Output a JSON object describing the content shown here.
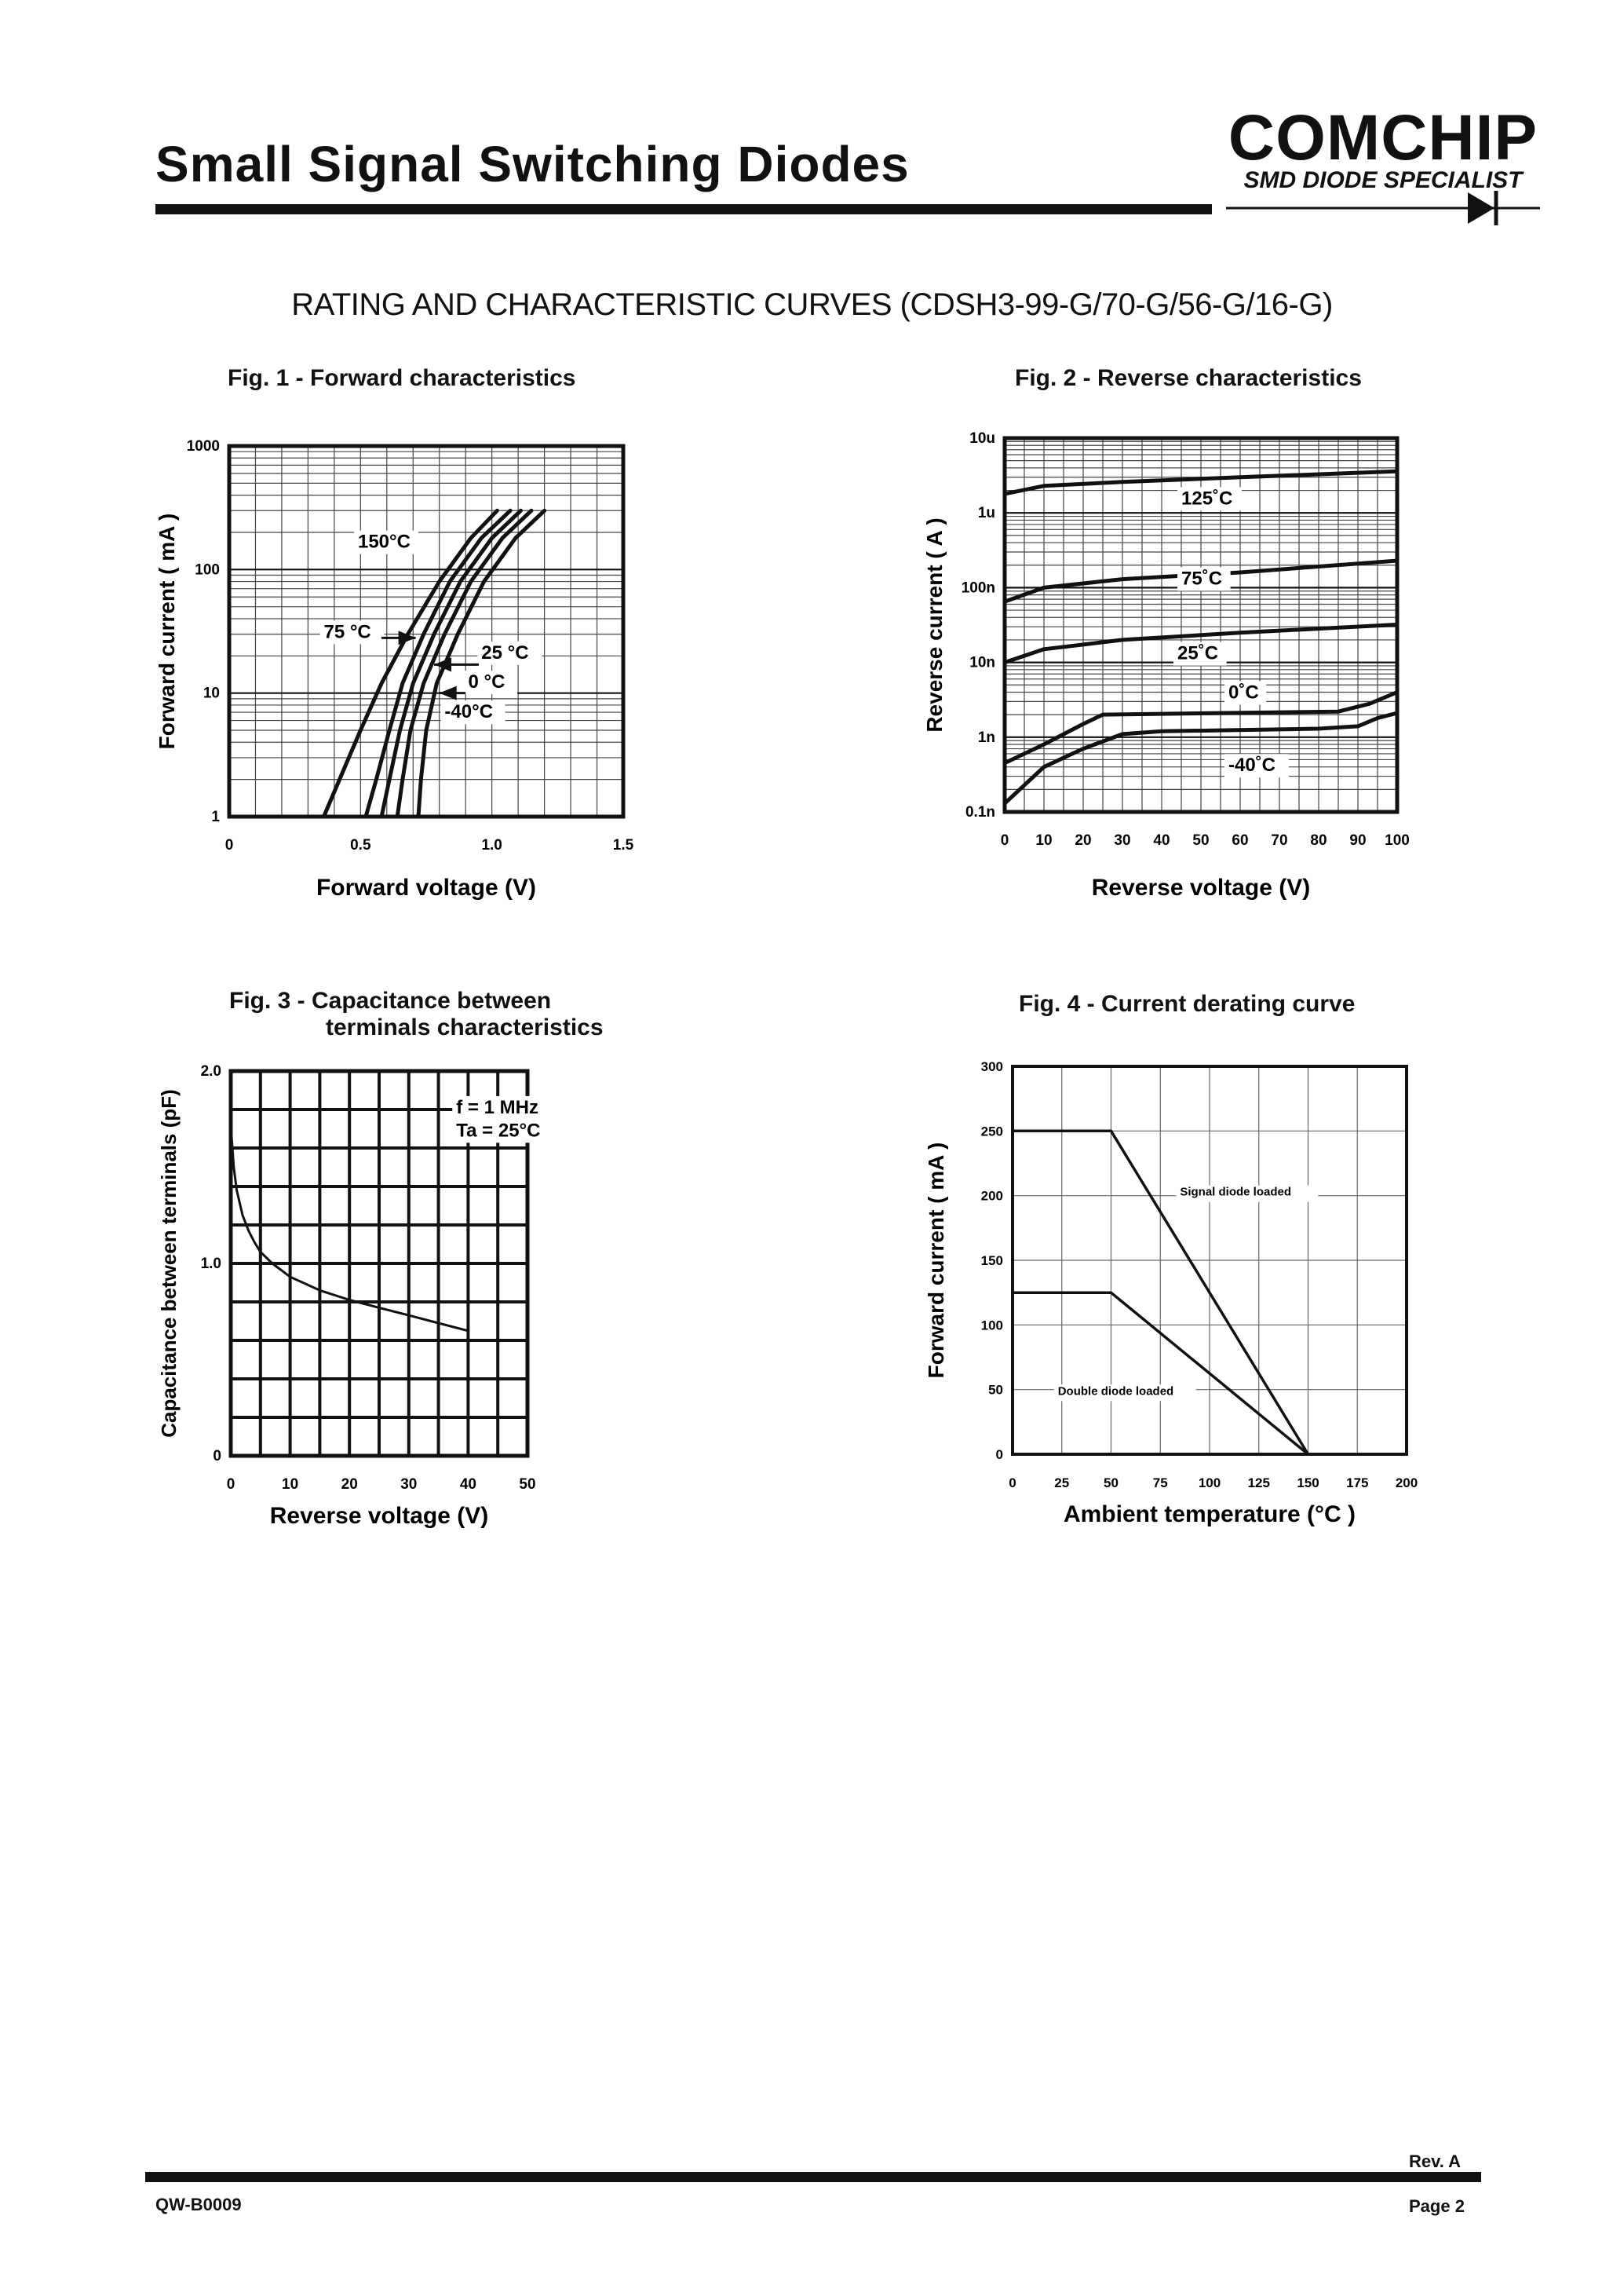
{
  "header": {
    "title": "Small Signal Switching Diodes",
    "logo": {
      "name": "COMCHIP",
      "tagline": "SMD DIODE SPECIALIST"
    }
  },
  "section_heading": "RATING AND CHARACTERISTIC CURVES (CDSH3-99-G/70-G/56-G/16-G)",
  "footer": {
    "doc_no": "QW-B0009",
    "rev": "Rev. A",
    "page": "Page 2"
  },
  "chart_data": [
    {
      "id": "fig1",
      "type": "line",
      "title": "Fig. 1 -  Forward characteristics",
      "xlabel": "Forward voltage (V)",
      "ylabel": "Forward current ( mA )",
      "xscale": "linear",
      "yscale": "log",
      "xlim": [
        0,
        1.5
      ],
      "ylim": [
        1,
        1000
      ],
      "xticks": [
        {
          "v": 0,
          "label": "0"
        },
        {
          "v": 0.5,
          "label": "0.5"
        },
        {
          "v": 1.0,
          "label": "1.0"
        },
        {
          "v": 1.5,
          "label": "1.5"
        }
      ],
      "yticks": [
        {
          "v": 1,
          "label": "1"
        },
        {
          "v": 10,
          "label": "10"
        },
        {
          "v": 100,
          "label": "100"
        },
        {
          "v": 1000,
          "label": "1000"
        }
      ],
      "grid": true,
      "series": [
        {
          "name": "150°C",
          "points": [
            [
              0.36,
              1
            ],
            [
              0.42,
              2
            ],
            [
              0.5,
              5
            ],
            [
              0.58,
              12
            ],
            [
              0.68,
              30
            ],
            [
              0.8,
              80
            ],
            [
              0.92,
              180
            ],
            [
              1.02,
              300
            ]
          ]
        },
        {
          "name": "75 °C",
          "points": [
            [
              0.52,
              1
            ],
            [
              0.56,
              2
            ],
            [
              0.61,
              5
            ],
            [
              0.66,
              12
            ],
            [
              0.74,
              30
            ],
            [
              0.84,
              80
            ],
            [
              0.96,
              180
            ],
            [
              1.07,
              300
            ]
          ]
        },
        {
          "name": "25 °C",
          "points": [
            [
              0.58,
              1
            ],
            [
              0.61,
              2
            ],
            [
              0.65,
              5
            ],
            [
              0.7,
              12
            ],
            [
              0.78,
              30
            ],
            [
              0.88,
              80
            ],
            [
              1.0,
              180
            ],
            [
              1.11,
              300
            ]
          ]
        },
        {
          "name": "0 °C",
          "points": [
            [
              0.64,
              1
            ],
            [
              0.66,
              2
            ],
            [
              0.69,
              5
            ],
            [
              0.74,
              12
            ],
            [
              0.82,
              30
            ],
            [
              0.92,
              80
            ],
            [
              1.04,
              180
            ],
            [
              1.15,
              300
            ]
          ]
        },
        {
          "name": "-40°C",
          "points": [
            [
              0.72,
              1
            ],
            [
              0.73,
              2
            ],
            [
              0.75,
              5
            ],
            [
              0.79,
              12
            ],
            [
              0.87,
              30
            ],
            [
              0.97,
              80
            ],
            [
              1.09,
              180
            ],
            [
              1.2,
              300
            ]
          ]
        }
      ],
      "annotations": [
        {
          "text": "150°C",
          "at": [
            0.49,
            150
          ]
        },
        {
          "text": "75 °C",
          "at": [
            0.36,
            28
          ]
        },
        {
          "text": "25 °C",
          "at": [
            0.96,
            19
          ]
        },
        {
          "text": "0 °C",
          "at": [
            0.91,
            11
          ]
        },
        {
          "text": "-40°C",
          "at": [
            0.82,
            6.3
          ]
        }
      ]
    },
    {
      "id": "fig2",
      "type": "line",
      "title": "Fig. 2 -  Reverse characteristics",
      "xlabel": "Reverse voltage (V)",
      "ylabel": "Reverse  current ( A )",
      "xscale": "linear",
      "yscale": "log",
      "xlim": [
        0,
        100
      ],
      "ylim": [
        1e-10,
        1e-05
      ],
      "xticks": [
        {
          "v": 0,
          "label": "0"
        },
        {
          "v": 10,
          "label": "10"
        },
        {
          "v": 20,
          "label": "20"
        },
        {
          "v": 30,
          "label": "30"
        },
        {
          "v": 40,
          "label": "40"
        },
        {
          "v": 50,
          "label": "50"
        },
        {
          "v": 60,
          "label": "60"
        },
        {
          "v": 70,
          "label": "70"
        },
        {
          "v": 80,
          "label": "80"
        },
        {
          "v": 90,
          "label": "90"
        },
        {
          "v": 100,
          "label": "100"
        }
      ],
      "yticks": [
        {
          "v": 1e-10,
          "label": "0.1n"
        },
        {
          "v": 1e-09,
          "label": "1n"
        },
        {
          "v": 1e-08,
          "label": "10n"
        },
        {
          "v": 1e-07,
          "label": "100n"
        },
        {
          "v": 1e-06,
          "label": "1u"
        },
        {
          "v": 1e-05,
          "label": "10u"
        }
      ],
      "grid": true,
      "series": [
        {
          "name": "125°C",
          "points": [
            [
              0,
              1.8e-06
            ],
            [
              10,
              2.3e-06
            ],
            [
              30,
              2.6e-06
            ],
            [
              60,
              3e-06
            ],
            [
              100,
              3.6e-06
            ]
          ]
        },
        {
          "name": "75°C",
          "points": [
            [
              0,
              6.5e-08
            ],
            [
              10,
              1e-07
            ],
            [
              30,
              1.3e-07
            ],
            [
              60,
              1.6e-07
            ],
            [
              100,
              2.3e-07
            ]
          ]
        },
        {
          "name": "25°C",
          "points": [
            [
              0,
              1e-08
            ],
            [
              10,
              1.5e-08
            ],
            [
              30,
              2e-08
            ],
            [
              60,
              2.5e-08
            ],
            [
              100,
              3.2e-08
            ]
          ]
        },
        {
          "name": "0°C",
          "points": [
            [
              0,
              4.5e-10
            ],
            [
              10,
              8e-10
            ],
            [
              20,
              1.5e-09
            ],
            [
              25,
              2e-09
            ],
            [
              85,
              2.2e-09
            ],
            [
              93,
              2.8e-09
            ],
            [
              100,
              4e-09
            ]
          ]
        },
        {
          "name": "-40°C",
          "points": [
            [
              0,
              1.3e-10
            ],
            [
              10,
              4e-10
            ],
            [
              20,
              7e-10
            ],
            [
              30,
              1.1e-09
            ],
            [
              40,
              1.2e-09
            ],
            [
              80,
              1.3e-09
            ],
            [
              90,
              1.4e-09
            ],
            [
              95,
              1.8e-09
            ],
            [
              100,
              2.1e-09
            ]
          ]
        }
      ],
      "annotations": [
        {
          "text": "125˚C",
          "at": [
            45,
            1.3e-06
          ]
        },
        {
          "text": "75˚C",
          "at": [
            45,
            1.1e-07
          ]
        },
        {
          "text": "25˚C",
          "at": [
            44,
            1.1e-08
          ]
        },
        {
          "text": "0˚C",
          "at": [
            57,
            3.3e-09
          ]
        },
        {
          "text": "-40˚C",
          "at": [
            57,
            3.5e-10
          ]
        }
      ]
    },
    {
      "id": "fig3",
      "type": "line",
      "title": "Fig. 3 -  Capacitance between",
      "title_line2": "terminals characteristics",
      "xlabel": "Reverse voltage (V)",
      "ylabel": "Capacitance between terminals (pF)",
      "xscale": "linear",
      "yscale": "linear",
      "xlim": [
        0,
        50
      ],
      "ylim": [
        0,
        2.0
      ],
      "xticks": [
        {
          "v": 0,
          "label": "0"
        },
        {
          "v": 10,
          "label": "10"
        },
        {
          "v": 20,
          "label": "20"
        },
        {
          "v": 30,
          "label": "30"
        },
        {
          "v": 40,
          "label": "40"
        },
        {
          "v": 50,
          "label": "50"
        }
      ],
      "yticks": [
        {
          "v": 0,
          "label": "0"
        },
        {
          "v": 1.0,
          "label": "1.0"
        },
        {
          "v": 2.0,
          "label": "2.0"
        }
      ],
      "grid": true,
      "series": [
        {
          "name": "capacitance",
          "points": [
            [
              0,
              1.72
            ],
            [
              0.5,
              1.5
            ],
            [
              1,
              1.38
            ],
            [
              2,
              1.25
            ],
            [
              3,
              1.17
            ],
            [
              4,
              1.11
            ],
            [
              5,
              1.06
            ],
            [
              7,
              1.0
            ],
            [
              10,
              0.93
            ],
            [
              15,
              0.86
            ],
            [
              20,
              0.81
            ],
            [
              25,
              0.77
            ],
            [
              30,
              0.73
            ],
            [
              35,
              0.69
            ],
            [
              40,
              0.65
            ]
          ]
        }
      ],
      "annotations": [
        {
          "text": "f = 1 MHz",
          "at": [
            38,
            1.78
          ]
        },
        {
          "text": "Ta = 25°C",
          "at": [
            38,
            1.66
          ]
        }
      ]
    },
    {
      "id": "fig4",
      "type": "line",
      "title": "Fig. 4 - Current derating curve",
      "xlabel": "Ambient temperature (°C )",
      "ylabel": "Forward current ( mA )",
      "xscale": "linear",
      "yscale": "linear",
      "xlim": [
        0,
        200
      ],
      "ylim": [
        0,
        300
      ],
      "xticks": [
        {
          "v": 0,
          "label": "0"
        },
        {
          "v": 25,
          "label": "25"
        },
        {
          "v": 50,
          "label": "50"
        },
        {
          "v": 75,
          "label": "75"
        },
        {
          "v": 100,
          "label": "100"
        },
        {
          "v": 125,
          "label": "125"
        },
        {
          "v": 150,
          "label": "150"
        },
        {
          "v": 175,
          "label": "175"
        },
        {
          "v": 200,
          "label": "200"
        }
      ],
      "yticks": [
        {
          "v": 0,
          "label": "0"
        },
        {
          "v": 50,
          "label": "50"
        },
        {
          "v": 100,
          "label": "100"
        },
        {
          "v": 150,
          "label": "150"
        },
        {
          "v": 200,
          "label": "200"
        },
        {
          "v": 250,
          "label": "250"
        },
        {
          "v": 300,
          "label": "300"
        }
      ],
      "grid": true,
      "series": [
        {
          "name": "Signal diode loaded",
          "points": [
            [
              0,
              250
            ],
            [
              50,
              250
            ],
            [
              150,
              0
            ]
          ]
        },
        {
          "name": "Double diode loaded",
          "points": [
            [
              0,
              125
            ],
            [
              50,
              125
            ],
            [
              150,
              0
            ]
          ]
        }
      ],
      "annotations": [
        {
          "text": "Signal diode loaded",
          "at": [
            85,
            200
          ]
        },
        {
          "text": "Double diode loaded",
          "at": [
            23,
            46
          ]
        }
      ]
    }
  ]
}
